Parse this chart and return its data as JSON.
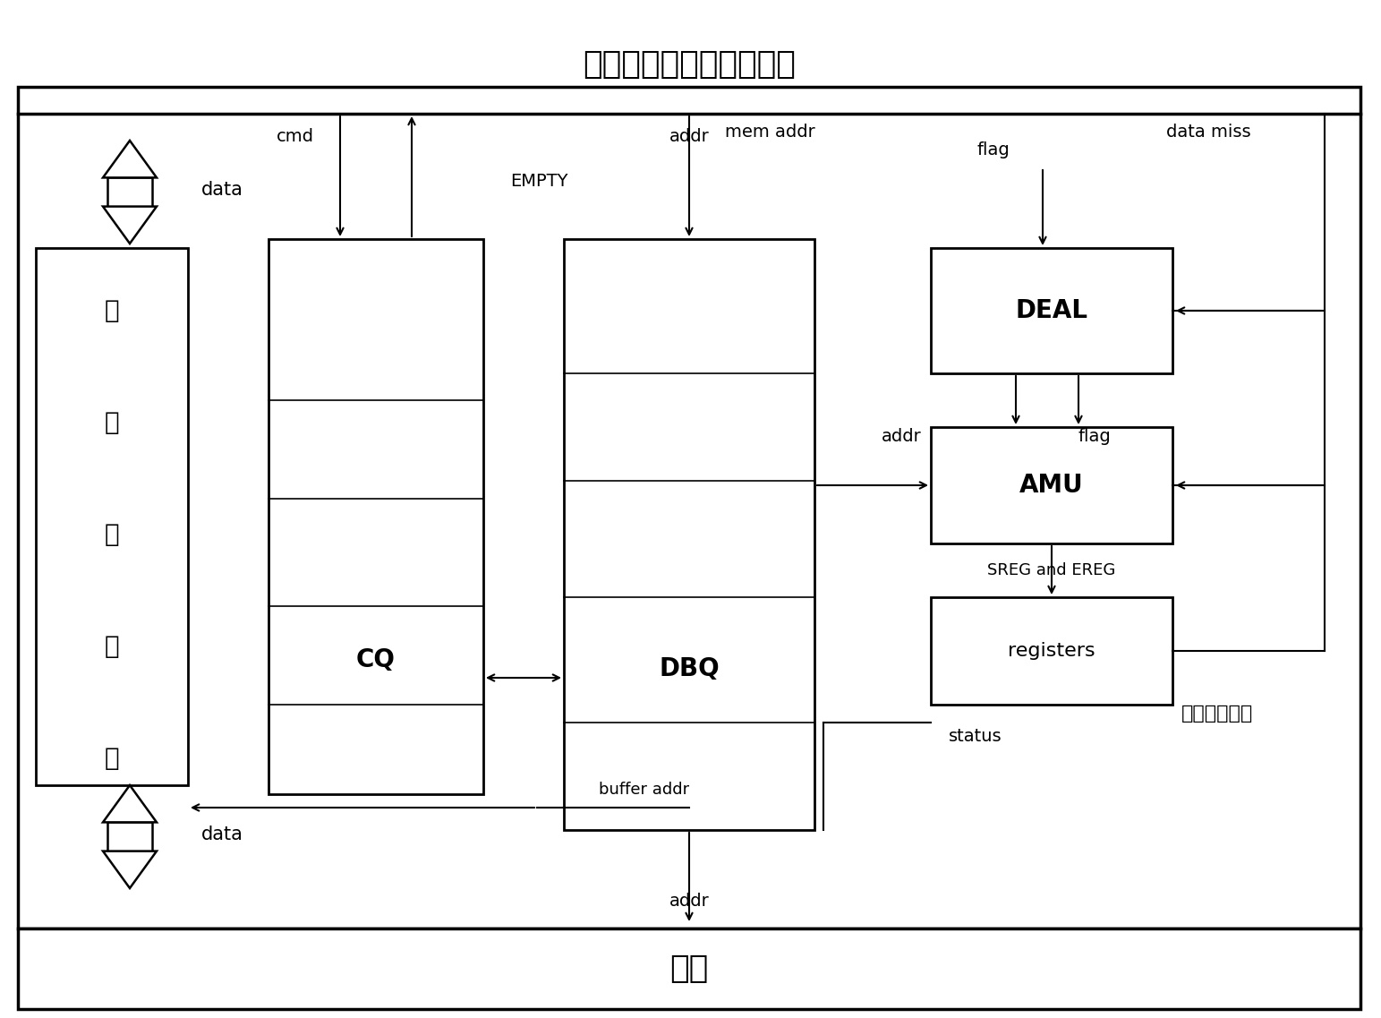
{
  "title": "片上硬件数据库处理器核",
  "bottom_label": "内存",
  "left_chars": [
    "高",
    "速",
    "缓",
    "冲",
    "器"
  ],
  "cq_label": "CQ",
  "dbq_label": "DBQ",
  "deal_label": "DEAL",
  "amu_label": "AMU",
  "registers_label": "registers",
  "sreg_ereg_label": "SREG and EREG",
  "buffer_ctrl_label": "缓冲器控制器",
  "text_data_top": "data",
  "text_data_bottom": "data",
  "text_cmd": "cmd",
  "text_addr_dbq": "addr",
  "text_empty": "EMPTY",
  "text_mem_addr": "mem addr",
  "text_flag_top": "flag",
  "text_data_miss": "data miss",
  "text_addr_amu": "addr",
  "text_flag_amu": "flag",
  "text_buffer_addr": "buffer addr",
  "text_addr_bottom": "addr",
  "text_status": "status",
  "bg_color": "#ffffff"
}
